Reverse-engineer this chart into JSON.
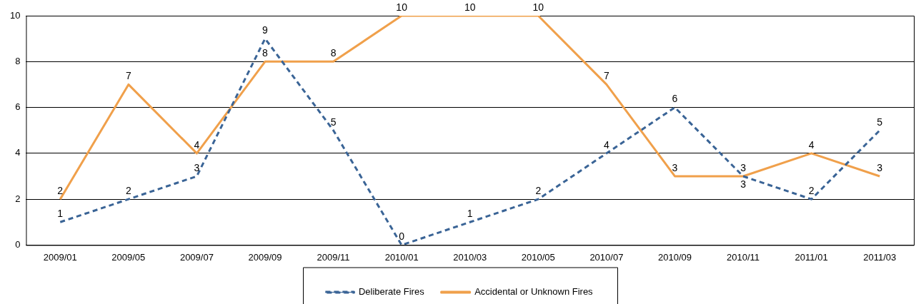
{
  "chart_data": {
    "type": "line",
    "categories": [
      "2009/01",
      "2009/05",
      "2009/07",
      "2009/09",
      "2009/11",
      "2010/01",
      "2010/03",
      "2010/05",
      "2010/07",
      "2010/09",
      "2010/11",
      "2011/01",
      "2011/03"
    ],
    "series": [
      {
        "name": "Deliberate Fires",
        "color": "#3a6496",
        "line_style": "dashed",
        "values": [
          1,
          2,
          3,
          9,
          5,
          0,
          1,
          2,
          4,
          6,
          3,
          2,
          5
        ]
      },
      {
        "name": "Accidental or Unknown Fires",
        "color": "#f0a04b",
        "line_style": "solid",
        "values": [
          2,
          7,
          4,
          8,
          8,
          10,
          10,
          10,
          7,
          3,
          3,
          4,
          3
        ]
      }
    ],
    "ylim": [
      0,
      10
    ],
    "yticks": [
      0,
      2,
      4,
      6,
      8,
      10
    ],
    "grid": "y",
    "legend": "bottom",
    "marker": "none",
    "data_labels": true
  }
}
